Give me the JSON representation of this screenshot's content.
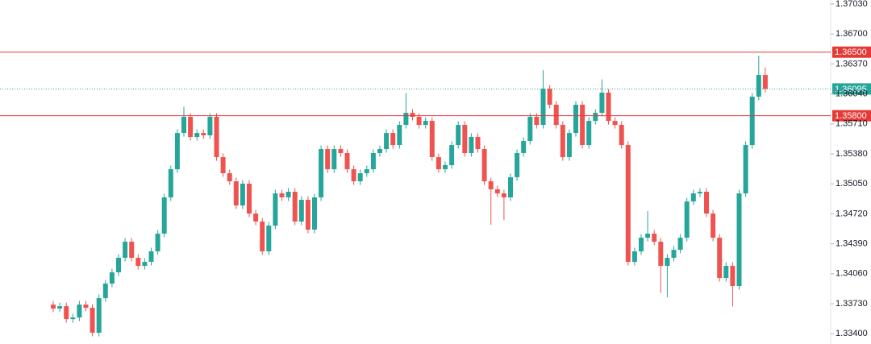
{
  "chart_data": {
    "type": "candlestick",
    "ylim": [
      1.33287,
      1.37074
    ],
    "yticks": [
      {
        "value": 1.334,
        "label": "1.33400"
      },
      {
        "value": 1.3373,
        "label": "1.33730"
      },
      {
        "value": 1.3406,
        "label": "1.34060"
      },
      {
        "value": 1.3439,
        "label": "1.34390"
      },
      {
        "value": 1.3472,
        "label": "1.34720"
      },
      {
        "value": 1.3505,
        "label": "1.35050"
      },
      {
        "value": 1.3538,
        "label": "1.35380"
      },
      {
        "value": 1.3571,
        "label": "1.35710"
      },
      {
        "value": 1.3604,
        "label": "1.36040"
      },
      {
        "value": 1.3637,
        "label": "1.36370"
      },
      {
        "value": 1.367,
        "label": "1.36700"
      },
      {
        "value": 1.3703,
        "label": "1.37030"
      }
    ],
    "up_color": "#26a69a",
    "down_color": "#ef5350",
    "levels": [
      {
        "value": 1.365,
        "label": "1.36500",
        "color": "#e53935"
      },
      {
        "value": 1.358,
        "label": "1.35800",
        "color": "#e53935"
      }
    ],
    "last_price": {
      "value": 1.36095,
      "label": "1.36095",
      "color": "#26a69a"
    },
    "open": [
      1.3372,
      1.33677,
      1.33703,
      1.33561,
      1.33579,
      1.33721,
      1.33686,
      1.33411,
      1.33792,
      1.33952,
      1.34076,
      1.34236,
      1.34413,
      1.34236,
      1.34147,
      1.34191,
      1.34307,
      1.34502,
      1.34901,
      1.35211,
      1.3561,
      1.35788,
      1.35566,
      1.3561,
      1.35584,
      1.35788,
      1.35344,
      1.35167,
      1.35078,
      1.34812,
      1.35052,
      1.34723,
      1.34635,
      1.34307,
      1.3459,
      1.34945,
      1.34901,
      1.34963,
      1.34635,
      1.34874,
      1.34546,
      1.34901,
      1.35433,
      1.35211,
      1.35433,
      1.35389,
      1.35211,
      1.35078,
      1.35167,
      1.35211,
      1.35389,
      1.35433,
      1.3561,
      1.35477,
      1.35699,
      1.35832,
      1.35788,
      1.35699,
      1.35743,
      1.35344,
      1.35211,
      1.35256,
      1.35477,
      1.35699,
      1.35389,
      1.35566,
      1.35433,
      1.35078,
      1.3499,
      1.34945,
      1.34901,
      1.35123,
      1.35389,
      1.35522,
      1.35788,
      1.35699,
      1.36098,
      1.35921,
      1.35699,
      1.35344,
      1.3561,
      1.35921,
      1.35477,
      1.35743,
      1.35832,
      1.36054,
      1.35743,
      1.35699,
      1.35477,
      1.34191,
      1.34307,
      1.34457,
      1.34502,
      1.34413,
      1.34147,
      1.34236,
      1.34324,
      1.34457,
      1.34856,
      1.34945,
      1.34963,
      1.34723,
      1.34457,
      1.34014,
      1.34147,
      1.33925,
      1.34945,
      1.35477,
      1.3601,
      1.36249
    ],
    "high": [
      1.3376,
      1.33743,
      1.33743,
      1.33619,
      1.33761,
      1.33761,
      1.33726,
      1.33832,
      1.33992,
      1.34116,
      1.34276,
      1.34453,
      1.34453,
      1.34276,
      1.34231,
      1.34347,
      1.34542,
      1.34941,
      1.35251,
      1.3565,
      1.359,
      1.35828,
      1.3565,
      1.3565,
      1.35828,
      1.35828,
      1.35384,
      1.35207,
      1.35118,
      1.35092,
      1.35092,
      1.34763,
      1.34675,
      1.3463,
      1.34985,
      1.34985,
      1.35003,
      1.35003,
      1.34914,
      1.34914,
      1.34941,
      1.35473,
      1.35473,
      1.35473,
      1.35473,
      1.35429,
      1.35251,
      1.35207,
      1.35251,
      1.35429,
      1.35473,
      1.3565,
      1.3565,
      1.35739,
      1.3605,
      1.35872,
      1.35828,
      1.35783,
      1.35783,
      1.35384,
      1.35296,
      1.35517,
      1.35739,
      1.35739,
      1.35606,
      1.35606,
      1.35473,
      1.35118,
      1.3503,
      1.34985,
      1.35163,
      1.35429,
      1.35562,
      1.35828,
      1.35828,
      1.363,
      1.36138,
      1.35961,
      1.35739,
      1.3565,
      1.35961,
      1.35961,
      1.35783,
      1.35872,
      1.362,
      1.36094,
      1.35783,
      1.35739,
      1.35517,
      1.34347,
      1.34497,
      1.3475,
      1.34542,
      1.34453,
      1.34276,
      1.34364,
      1.34497,
      1.34896,
      1.34985,
      1.35003,
      1.35003,
      1.34763,
      1.34497,
      1.34187,
      1.34187,
      1.34985,
      1.35517,
      1.3605,
      1.3646,
      1.3633
    ],
    "low": [
      1.33637,
      1.33637,
      1.33521,
      1.33521,
      1.33539,
      1.33646,
      1.33371,
      1.33371,
      1.33752,
      1.33912,
      1.34036,
      1.34196,
      1.34196,
      1.34107,
      1.34107,
      1.34151,
      1.34267,
      1.34462,
      1.34861,
      1.35171,
      1.3557,
      1.35526,
      1.35526,
      1.35544,
      1.35544,
      1.35304,
      1.35127,
      1.35038,
      1.34772,
      1.34772,
      1.34683,
      1.34595,
      1.34267,
      1.34267,
      1.3455,
      1.34861,
      1.34861,
      1.34595,
      1.34595,
      1.34506,
      1.34506,
      1.34861,
      1.35171,
      1.35171,
      1.35349,
      1.35171,
      1.35038,
      1.35038,
      1.35127,
      1.35171,
      1.35349,
      1.35393,
      1.35437,
      1.35437,
      1.35659,
      1.35748,
      1.35659,
      1.35659,
      1.35304,
      1.35171,
      1.35171,
      1.35216,
      1.35437,
      1.35349,
      1.35349,
      1.35393,
      1.35038,
      1.346,
      1.34905,
      1.3465,
      1.34861,
      1.35083,
      1.35349,
      1.35482,
      1.35659,
      1.35659,
      1.35881,
      1.35659,
      1.35304,
      1.35304,
      1.3557,
      1.35437,
      1.35437,
      1.35703,
      1.35792,
      1.35703,
      1.35659,
      1.35437,
      1.34151,
      1.34151,
      1.34267,
      1.34417,
      1.34373,
      1.3385,
      1.338,
      1.34196,
      1.34284,
      1.34417,
      1.34816,
      1.34905,
      1.34683,
      1.34417,
      1.33974,
      1.33974,
      1.337,
      1.33885,
      1.34905,
      1.35437,
      1.3597,
      1.36055
    ],
    "close": [
      1.33677,
      1.33703,
      1.33561,
      1.33579,
      1.33721,
      1.33686,
      1.33411,
      1.33792,
      1.33952,
      1.34076,
      1.34236,
      1.34413,
      1.34236,
      1.34147,
      1.34191,
      1.34307,
      1.34502,
      1.34901,
      1.35211,
      1.3561,
      1.35788,
      1.35566,
      1.3561,
      1.35584,
      1.35788,
      1.35344,
      1.35167,
      1.35078,
      1.34812,
      1.35052,
      1.34723,
      1.34635,
      1.34307,
      1.3459,
      1.34945,
      1.34901,
      1.34963,
      1.34635,
      1.34874,
      1.34546,
      1.34901,
      1.35433,
      1.35211,
      1.35433,
      1.35389,
      1.35211,
      1.35078,
      1.35167,
      1.35211,
      1.35389,
      1.35433,
      1.3561,
      1.35477,
      1.35699,
      1.35832,
      1.35788,
      1.35699,
      1.35743,
      1.35344,
      1.35211,
      1.35256,
      1.35477,
      1.35699,
      1.35389,
      1.35566,
      1.35433,
      1.35078,
      1.3499,
      1.34945,
      1.34901,
      1.35123,
      1.35389,
      1.35522,
      1.35788,
      1.35699,
      1.36098,
      1.35921,
      1.35699,
      1.35344,
      1.3561,
      1.35921,
      1.35477,
      1.35743,
      1.35832,
      1.36054,
      1.35743,
      1.35699,
      1.35477,
      1.34191,
      1.34307,
      1.34457,
      1.34502,
      1.34413,
      1.34147,
      1.34236,
      1.34324,
      1.34457,
      1.34856,
      1.34945,
      1.34963,
      1.34723,
      1.34457,
      1.34014,
      1.34147,
      1.33925,
      1.34945,
      1.35477,
      1.3601,
      1.36249,
      1.36095
    ]
  }
}
